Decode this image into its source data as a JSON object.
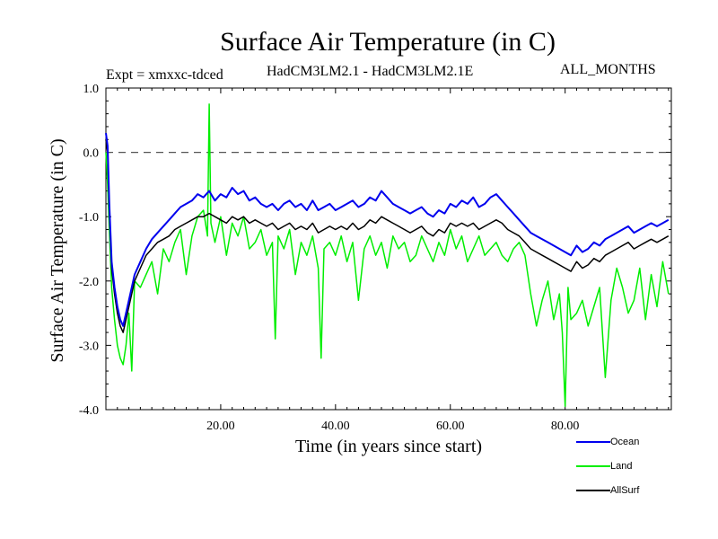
{
  "chart_data": {
    "type": "line",
    "title": "Surface Air Temperature (in C)",
    "subtitle_left": "Expt = xmxxc-tdced",
    "subtitle_center": "HadCM3LM2.1 - HadCM3LM2.1E",
    "subtitle_right": "ALL_MONTHS",
    "xlabel": "Time (in years since start)",
    "ylabel": "Surface Air Temperature (in C)",
    "xlim": [
      0,
      98.5
    ],
    "ylim": [
      -4.0,
      1.0
    ],
    "x_ticks": [
      {
        "value": 20,
        "label": "20.00"
      },
      {
        "value": 40,
        "label": "40.00"
      },
      {
        "value": 60,
        "label": "60.00"
      },
      {
        "value": 80,
        "label": "80.00"
      }
    ],
    "y_ticks": [
      {
        "value": 1.0,
        "label": "1.0"
      },
      {
        "value": 0.0,
        "label": "0.0"
      },
      {
        "value": -1.0,
        "label": "-1.0"
      },
      {
        "value": -2.0,
        "label": "-2.0"
      },
      {
        "value": -3.0,
        "label": "-3.0"
      },
      {
        "value": -4.0,
        "label": "-4.0"
      }
    ],
    "reference_line": {
      "y": 0.0,
      "style": "dashed"
    },
    "legend_position": "bottom-right",
    "series": [
      {
        "name": "Land",
        "color": "#00ee00",
        "x": [
          0,
          0.3,
          0.6,
          1,
          1.5,
          2,
          2.5,
          3,
          3.5,
          4,
          4.5,
          5,
          6,
          7,
          8,
          9,
          10,
          11,
          12,
          13,
          14,
          15,
          16,
          17,
          17.7,
          18,
          18.3,
          19,
          20,
          21,
          22,
          23,
          24,
          25,
          26,
          27,
          28,
          29,
          29.5,
          30,
          31,
          32,
          33,
          34,
          35,
          36,
          37,
          37.5,
          38,
          39,
          40,
          41,
          42,
          43,
          44,
          45,
          46,
          47,
          48,
          49,
          50,
          51,
          52,
          53,
          54,
          55,
          56,
          57,
          58,
          59,
          60,
          61,
          62,
          63,
          64,
          65,
          66,
          67,
          68,
          69,
          70,
          71,
          72,
          73,
          74,
          75,
          76,
          77,
          78,
          79,
          79.5,
          80,
          80.5,
          81,
          82,
          83,
          84,
          85,
          86,
          87,
          88,
          89,
          90,
          91,
          92,
          93,
          94,
          95,
          96,
          97,
          98
        ],
        "y": [
          0.0,
          -0.5,
          -1.2,
          -2.1,
          -2.6,
          -3.0,
          -3.2,
          -3.3,
          -3.0,
          -2.5,
          -3.4,
          -2.0,
          -2.1,
          -1.9,
          -1.7,
          -2.2,
          -1.5,
          -1.7,
          -1.4,
          -1.2,
          -1.9,
          -1.3,
          -1.0,
          -0.9,
          -1.3,
          0.75,
          -1.1,
          -1.4,
          -1.0,
          -1.6,
          -1.1,
          -1.3,
          -1.0,
          -1.5,
          -1.4,
          -1.2,
          -1.6,
          -1.4,
          -2.9,
          -1.3,
          -1.5,
          -1.2,
          -1.9,
          -1.4,
          -1.6,
          -1.3,
          -1.8,
          -3.2,
          -1.5,
          -1.4,
          -1.6,
          -1.3,
          -1.7,
          -1.4,
          -2.3,
          -1.5,
          -1.3,
          -1.6,
          -1.4,
          -1.8,
          -1.3,
          -1.5,
          -1.4,
          -1.7,
          -1.6,
          -1.3,
          -1.5,
          -1.7,
          -1.4,
          -1.6,
          -1.2,
          -1.5,
          -1.3,
          -1.7,
          -1.5,
          -1.3,
          -1.6,
          -1.5,
          -1.4,
          -1.6,
          -1.7,
          -1.5,
          -1.4,
          -1.6,
          -2.2,
          -2.7,
          -2.3,
          -2.0,
          -2.6,
          -2.2,
          -2.8,
          -3.95,
          -2.1,
          -2.6,
          -2.5,
          -2.3,
          -2.7,
          -2.4,
          -2.1,
          -3.5,
          -2.3,
          -1.8,
          -2.1,
          -2.5,
          -2.3,
          -1.8,
          -2.6,
          -1.9,
          -2.4,
          -1.7,
          -2.2
        ]
      },
      {
        "name": "AllSurf",
        "color": "#000000",
        "x": [
          0,
          0.3,
          0.6,
          1,
          1.5,
          2,
          2.5,
          3,
          3.5,
          4,
          4.5,
          5,
          6,
          7,
          8,
          9,
          10,
          11,
          12,
          13,
          14,
          15,
          16,
          17,
          18,
          19,
          20,
          21,
          22,
          23,
          24,
          25,
          26,
          27,
          28,
          29,
          30,
          31,
          32,
          33,
          34,
          35,
          36,
          37,
          38,
          39,
          40,
          41,
          42,
          43,
          44,
          45,
          46,
          47,
          48,
          49,
          50,
          51,
          52,
          53,
          54,
          55,
          56,
          57,
          58,
          59,
          60,
          61,
          62,
          63,
          64,
          65,
          66,
          67,
          68,
          69,
          70,
          71,
          72,
          73,
          74,
          75,
          76,
          77,
          78,
          79,
          80,
          81,
          82,
          83,
          84,
          85,
          86,
          87,
          88,
          89,
          90,
          91,
          92,
          93,
          94,
          95,
          96,
          97,
          98
        ],
        "y": [
          0.2,
          0.0,
          -0.9,
          -1.8,
          -2.2,
          -2.5,
          -2.7,
          -2.8,
          -2.6,
          -2.4,
          -2.2,
          -2.0,
          -1.8,
          -1.6,
          -1.5,
          -1.4,
          -1.35,
          -1.3,
          -1.2,
          -1.15,
          -1.1,
          -1.05,
          -1.0,
          -1.0,
          -0.95,
          -1.0,
          -1.05,
          -1.1,
          -1.0,
          -1.05,
          -1.0,
          -1.1,
          -1.05,
          -1.1,
          -1.15,
          -1.1,
          -1.2,
          -1.15,
          -1.1,
          -1.2,
          -1.15,
          -1.2,
          -1.1,
          -1.25,
          -1.2,
          -1.15,
          -1.2,
          -1.15,
          -1.2,
          -1.1,
          -1.2,
          -1.15,
          -1.05,
          -1.1,
          -1.0,
          -1.05,
          -1.1,
          -1.15,
          -1.2,
          -1.25,
          -1.2,
          -1.15,
          -1.25,
          -1.3,
          -1.2,
          -1.25,
          -1.1,
          -1.15,
          -1.1,
          -1.15,
          -1.1,
          -1.2,
          -1.15,
          -1.1,
          -1.05,
          -1.1,
          -1.2,
          -1.25,
          -1.3,
          -1.4,
          -1.5,
          -1.55,
          -1.6,
          -1.65,
          -1.7,
          -1.75,
          -1.8,
          -1.85,
          -1.7,
          -1.8,
          -1.75,
          -1.65,
          -1.7,
          -1.6,
          -1.55,
          -1.5,
          -1.45,
          -1.4,
          -1.5,
          -1.45,
          -1.4,
          -1.35,
          -1.4,
          -1.35,
          -1.3
        ]
      },
      {
        "name": "Ocean",
        "color": "#0000ee",
        "x": [
          0,
          0.3,
          0.6,
          1,
          1.5,
          2,
          2.5,
          3,
          3.5,
          4,
          4.5,
          5,
          6,
          7,
          8,
          9,
          10,
          11,
          12,
          13,
          14,
          15,
          16,
          17,
          18,
          19,
          20,
          21,
          22,
          23,
          24,
          25,
          26,
          27,
          28,
          29,
          30,
          31,
          32,
          33,
          34,
          35,
          36,
          37,
          38,
          39,
          40,
          41,
          42,
          43,
          44,
          45,
          46,
          47,
          48,
          49,
          50,
          51,
          52,
          53,
          54,
          55,
          56,
          57,
          58,
          59,
          60,
          61,
          62,
          63,
          64,
          65,
          66,
          67,
          68,
          69,
          70,
          71,
          72,
          73,
          74,
          75,
          76,
          77,
          78,
          79,
          80,
          81,
          82,
          83,
          84,
          85,
          86,
          87,
          88,
          89,
          90,
          91,
          92,
          93,
          94,
          95,
          96,
          97,
          98
        ],
        "y": [
          0.3,
          0.1,
          -0.8,
          -1.7,
          -2.1,
          -2.4,
          -2.6,
          -2.7,
          -2.5,
          -2.3,
          -2.1,
          -1.9,
          -1.7,
          -1.5,
          -1.35,
          -1.25,
          -1.15,
          -1.05,
          -0.95,
          -0.85,
          -0.8,
          -0.75,
          -0.65,
          -0.7,
          -0.6,
          -0.75,
          -0.65,
          -0.7,
          -0.55,
          -0.65,
          -0.6,
          -0.75,
          -0.7,
          -0.8,
          -0.85,
          -0.8,
          -0.9,
          -0.8,
          -0.75,
          -0.85,
          -0.8,
          -0.9,
          -0.75,
          -0.9,
          -0.85,
          -0.8,
          -0.9,
          -0.85,
          -0.8,
          -0.75,
          -0.85,
          -0.8,
          -0.7,
          -0.75,
          -0.6,
          -0.7,
          -0.8,
          -0.85,
          -0.9,
          -0.95,
          -0.9,
          -0.85,
          -0.95,
          -1.0,
          -0.9,
          -0.95,
          -0.8,
          -0.85,
          -0.75,
          -0.8,
          -0.7,
          -0.85,
          -0.8,
          -0.7,
          -0.65,
          -0.75,
          -0.85,
          -0.95,
          -1.05,
          -1.15,
          -1.25,
          -1.3,
          -1.35,
          -1.4,
          -1.45,
          -1.5,
          -1.55,
          -1.6,
          -1.45,
          -1.55,
          -1.5,
          -1.4,
          -1.45,
          -1.35,
          -1.3,
          -1.25,
          -1.2,
          -1.15,
          -1.25,
          -1.2,
          -1.15,
          -1.1,
          -1.15,
          -1.1,
          -1.05
        ]
      }
    ]
  }
}
